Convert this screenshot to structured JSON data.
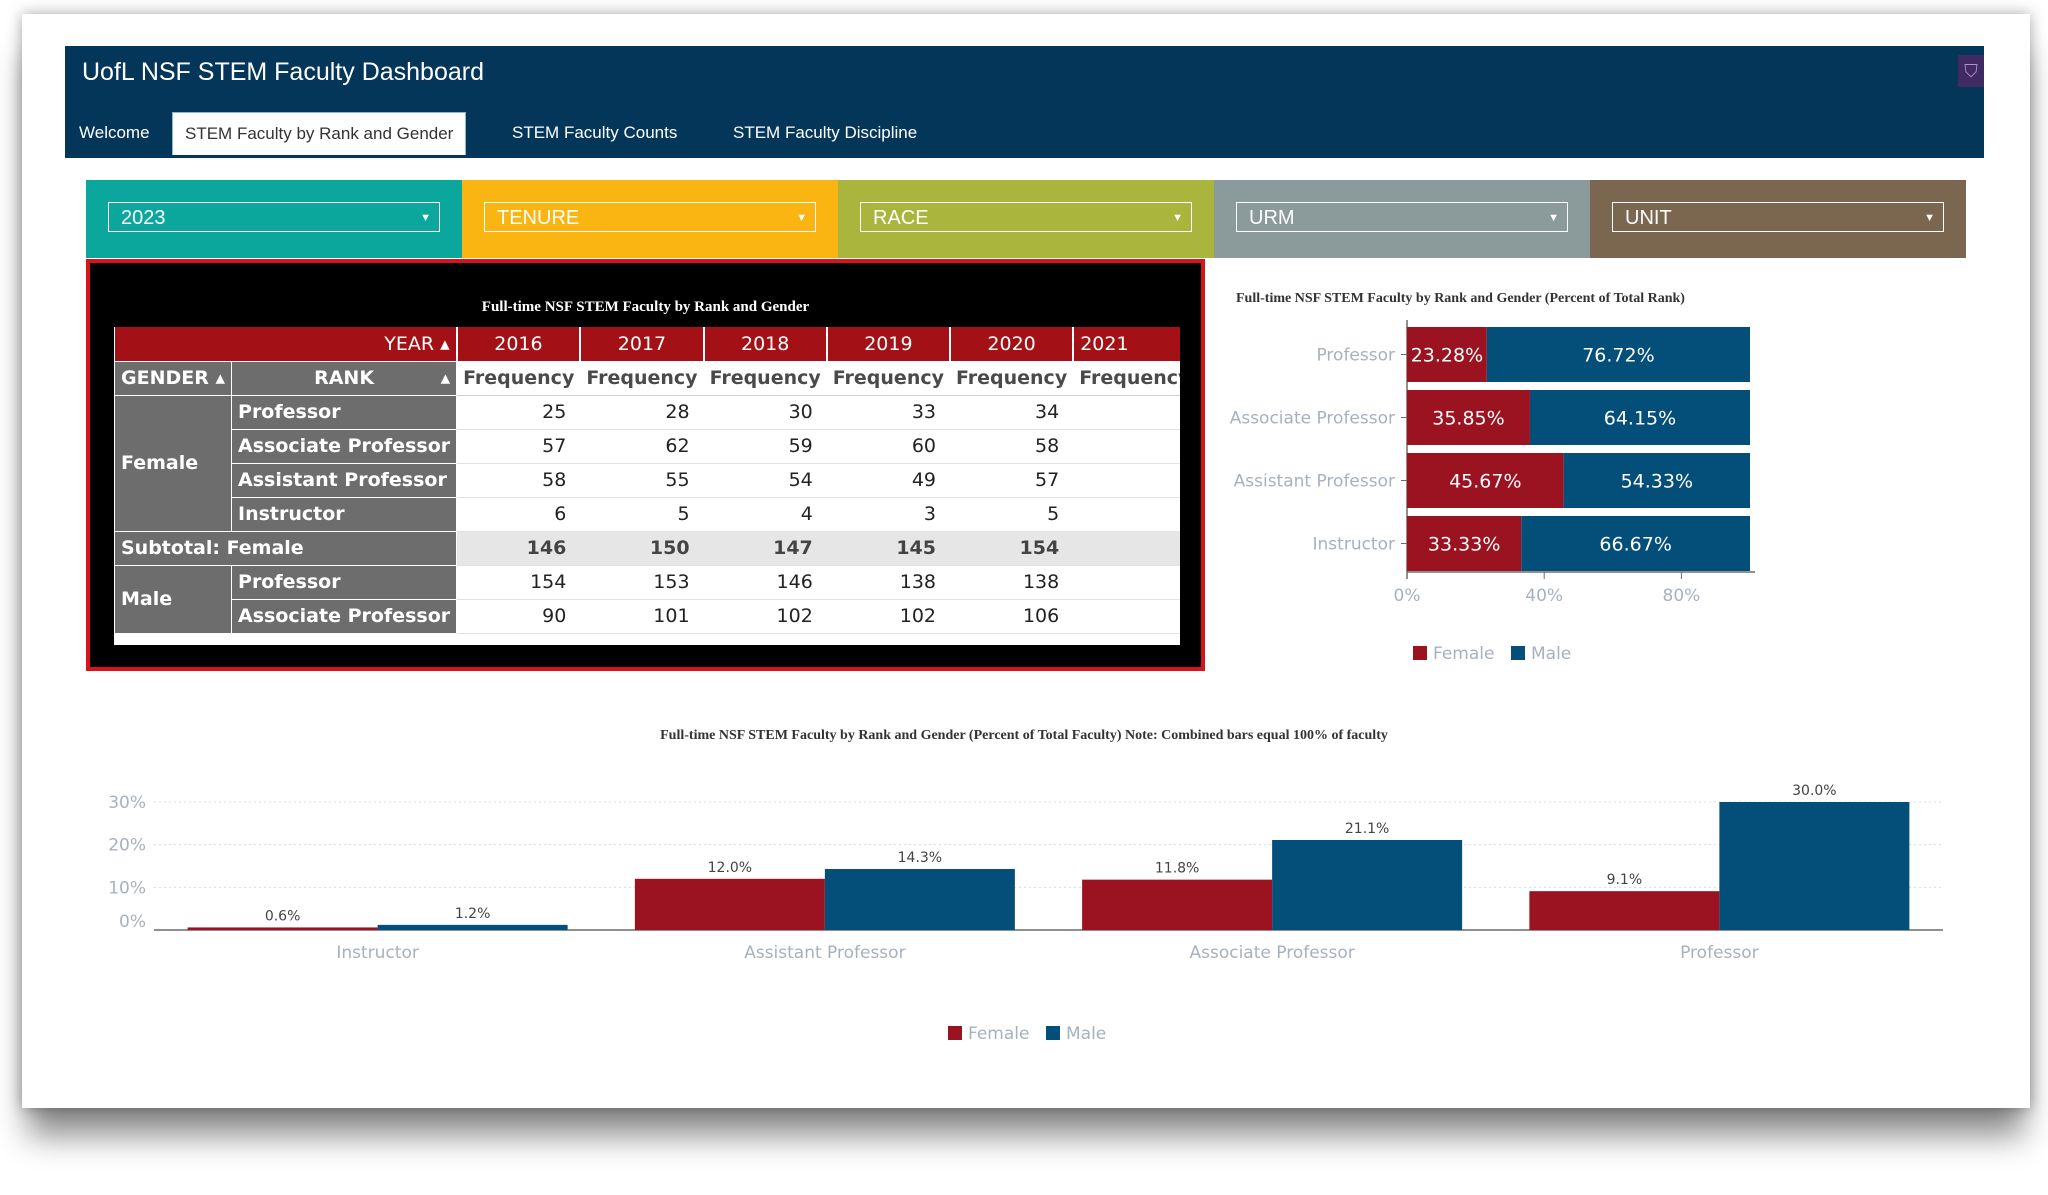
{
  "app": {
    "title": "UofL NSF STEM Faculty Dashboard",
    "tabs": [
      "Welcome",
      "STEM Faculty by Rank and Gender",
      "STEM Faculty Counts",
      "STEM Faculty Discipline"
    ],
    "active_tab": "STEM Faculty by Rank and Gender"
  },
  "filters": [
    {
      "value": "2023",
      "color": "#0ca79c"
    },
    {
      "value": "TENURE",
      "color": "#fbb512"
    },
    {
      "value": "RACE",
      "color": "#a9b53c"
    },
    {
      "value": "URM",
      "color": "#8b9a9b"
    },
    {
      "value": "UNIT",
      "color": "#7b6650"
    }
  ],
  "pivot": {
    "title": "Full-time NSF STEM Faculty by Rank and Gender",
    "year_label": "YEAR ▴",
    "gender_label": "GENDER ▴",
    "rank_label": "RANK",
    "rank_sort": "▴",
    "years": [
      "2016",
      "2017",
      "2018",
      "2019",
      "2020",
      "2021"
    ],
    "measure": "Frequency",
    "female_label": "Female",
    "male_label": "Male",
    "subtotal_female_label": "Subtotal: Female",
    "female_rows": [
      {
        "rank": "Professor",
        "values": [
          "25",
          "28",
          "30",
          "33",
          "34",
          ""
        ]
      },
      {
        "rank": "Associate Professor",
        "values": [
          "57",
          "62",
          "59",
          "60",
          "58",
          ""
        ]
      },
      {
        "rank": "Assistant Professor",
        "values": [
          "58",
          "55",
          "54",
          "49",
          "57",
          ""
        ]
      },
      {
        "rank": "Instructor",
        "values": [
          "6",
          "5",
          "4",
          "3",
          "5",
          ""
        ]
      }
    ],
    "female_subtotal": [
      "146",
      "150",
      "147",
      "145",
      "154",
      ""
    ],
    "male_rows": [
      {
        "rank": "Professor",
        "values": [
          "154",
          "153",
          "146",
          "138",
          "138",
          ""
        ]
      },
      {
        "rank": "Associate Professor",
        "values": [
          "90",
          "101",
          "102",
          "102",
          "106",
          ""
        ]
      }
    ]
  },
  "chart_data": [
    {
      "type": "bar",
      "orientation": "horizontal-stacked",
      "title": "Full-time NSF STEM Faculty by Rank and Gender (Percent of Total Rank)",
      "categories": [
        "Professor",
        "Associate Professor",
        "Assistant Professor",
        "Instructor"
      ],
      "series": [
        {
          "name": "Female",
          "color": "#9b1320",
          "values": [
            23.28,
            35.85,
            45.67,
            33.33
          ],
          "labels": [
            "23.28%",
            "35.85%",
            "45.67%",
            "33.33%"
          ]
        },
        {
          "name": "Male",
          "color": "#044e7a",
          "values": [
            76.72,
            64.15,
            54.33,
            66.67
          ],
          "labels": [
            "76.72%",
            "64.15%",
            "54.33%",
            "66.67%"
          ]
        }
      ],
      "xticks": [
        "0%",
        "40%",
        "80%"
      ],
      "xlim": [
        0,
        100
      ],
      "legend": "bottom"
    },
    {
      "type": "bar",
      "orientation": "vertical-grouped",
      "title": "Full-time NSF STEM Faculty by Rank and Gender (Percent of Total Faculty) Note: Combined bars equal 100% of faculty",
      "categories": [
        "Instructor",
        "Assistant Professor",
        "Associate Professor",
        "Professor"
      ],
      "series": [
        {
          "name": "Female",
          "color": "#9b1320",
          "values": [
            0.6,
            12.0,
            11.8,
            9.1
          ],
          "labels": [
            "0.6%",
            "12.0%",
            "11.8%",
            "9.1%"
          ]
        },
        {
          "name": "Male",
          "color": "#044e7a",
          "values": [
            1.2,
            14.3,
            21.1,
            30.0
          ],
          "labels": [
            "1.2%",
            "14.3%",
            "21.1%",
            "30.0%"
          ]
        }
      ],
      "yticks": [
        {
          "v": 0,
          "label": "0%"
        },
        {
          "v": 10,
          "label": "10%"
        },
        {
          "v": 20,
          "label": "20%"
        },
        {
          "v": 30,
          "label": "30%"
        }
      ],
      "ylim": [
        0,
        30
      ],
      "legend": "bottom"
    }
  ]
}
